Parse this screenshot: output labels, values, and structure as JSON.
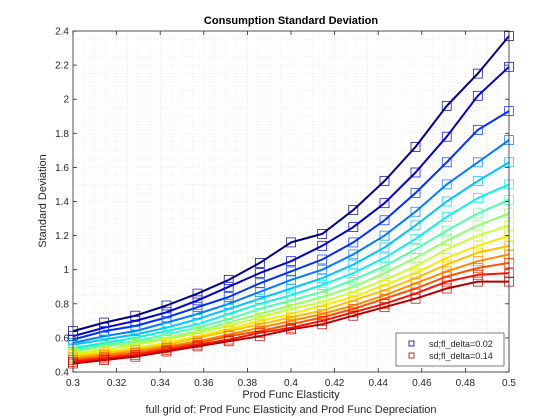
{
  "chart_data": {
    "type": "line",
    "title": "Consumption Standard Deviation",
    "xlabel": "Prod Func Elasticity",
    "ylabel": "Standard Deviation",
    "caption": "full grid of: Prod Func Elasticity and Prod Func Depreciation",
    "xlim": [
      0.3,
      0.5
    ],
    "ylim": [
      0.4,
      2.4
    ],
    "xticks": [
      "0.3",
      "0.32",
      "0.34",
      "0.36",
      "0.38",
      "0.4",
      "0.42",
      "0.44",
      "0.46",
      "0.48",
      "0.5"
    ],
    "yticks": [
      "0.4",
      "0.6",
      "0.8",
      "1",
      "1.2",
      "1.4",
      "1.6",
      "1.8",
      "2",
      "2.2",
      "2.4"
    ],
    "grid": "minor-dotted",
    "legend_position": "bottom-right",
    "legend": [
      {
        "label": "sd;fl_delta=0.02",
        "color": "#00008b"
      },
      {
        "label": "sd;fl_delta=0.14",
        "color": "#b30000"
      }
    ],
    "x": [
      0.3,
      0.3143,
      0.3286,
      0.3429,
      0.3571,
      0.3714,
      0.3857,
      0.4,
      0.4143,
      0.4286,
      0.4429,
      0.4571,
      0.4714,
      0.4857,
      0.5
    ],
    "series": [
      {
        "name": "sd;fl_delta=0.02",
        "color": "#00008b",
        "values": [
          0.64,
          0.69,
          0.73,
          0.79,
          0.86,
          0.94,
          1.04,
          1.16,
          1.21,
          1.35,
          1.52,
          1.72,
          1.96,
          2.15,
          2.37
        ]
      },
      {
        "color": "#0000d0",
        "values": [
          0.61,
          0.66,
          0.7,
          0.75,
          0.82,
          0.9,
          0.98,
          1.05,
          1.14,
          1.25,
          1.39,
          1.57,
          1.78,
          2.02,
          2.19
        ]
      },
      {
        "color": "#0030ff",
        "values": [
          0.59,
          0.64,
          0.67,
          0.72,
          0.78,
          0.84,
          0.92,
          0.99,
          1.06,
          1.16,
          1.29,
          1.45,
          1.63,
          1.82,
          1.93
        ]
      },
      {
        "color": "#007cff",
        "values": [
          0.57,
          0.61,
          0.64,
          0.69,
          0.74,
          0.8,
          0.87,
          0.94,
          1.0,
          1.09,
          1.2,
          1.34,
          1.5,
          1.63,
          1.76
        ]
      },
      {
        "color": "#00c4ff",
        "values": [
          0.56,
          0.59,
          0.62,
          0.66,
          0.71,
          0.77,
          0.83,
          0.89,
          0.95,
          1.03,
          1.13,
          1.26,
          1.4,
          1.52,
          1.63
        ]
      },
      {
        "color": "#10f0e8",
        "values": [
          0.54,
          0.57,
          0.6,
          0.64,
          0.68,
          0.74,
          0.8,
          0.85,
          0.91,
          0.98,
          1.07,
          1.18,
          1.31,
          1.42,
          1.5
        ]
      },
      {
        "color": "#50ffb0",
        "values": [
          0.53,
          0.56,
          0.58,
          0.62,
          0.66,
          0.71,
          0.77,
          0.82,
          0.87,
          0.94,
          1.02,
          1.12,
          1.23,
          1.33,
          1.41
        ]
      },
      {
        "color": "#90ff70",
        "values": [
          0.52,
          0.55,
          0.57,
          0.6,
          0.64,
          0.69,
          0.74,
          0.79,
          0.84,
          0.9,
          0.98,
          1.07,
          1.17,
          1.26,
          1.33
        ]
      },
      {
        "color": "#c8ff38",
        "values": [
          0.51,
          0.53,
          0.56,
          0.59,
          0.63,
          0.67,
          0.72,
          0.77,
          0.81,
          0.87,
          0.94,
          1.02,
          1.12,
          1.2,
          1.26
        ]
      },
      {
        "color": "#f0f000",
        "values": [
          0.5,
          0.52,
          0.54,
          0.57,
          0.61,
          0.65,
          0.7,
          0.74,
          0.79,
          0.84,
          0.91,
          0.98,
          1.07,
          1.14,
          1.2
        ]
      },
      {
        "color": "#ffc000",
        "values": [
          0.49,
          0.51,
          0.53,
          0.56,
          0.6,
          0.64,
          0.68,
          0.72,
          0.76,
          0.82,
          0.88,
          0.95,
          1.03,
          1.1,
          1.14
        ]
      },
      {
        "color": "#ff8c00",
        "values": [
          0.48,
          0.5,
          0.52,
          0.55,
          0.58,
          0.62,
          0.66,
          0.7,
          0.74,
          0.79,
          0.85,
          0.92,
          0.99,
          1.05,
          1.09
        ]
      },
      {
        "color": "#ff5000",
        "values": [
          0.47,
          0.49,
          0.51,
          0.54,
          0.57,
          0.61,
          0.64,
          0.68,
          0.72,
          0.77,
          0.83,
          0.89,
          0.96,
          1.01,
          1.04
        ]
      },
      {
        "color": "#ff1000",
        "values": [
          0.46,
          0.48,
          0.5,
          0.53,
          0.56,
          0.59,
          0.63,
          0.66,
          0.7,
          0.75,
          0.8,
          0.86,
          0.93,
          0.97,
          0.98
        ]
      },
      {
        "name": "sd;fl_delta=0.14",
        "color": "#b30000",
        "values": [
          0.45,
          0.47,
          0.49,
          0.52,
          0.55,
          0.58,
          0.61,
          0.65,
          0.68,
          0.73,
          0.78,
          0.83,
          0.89,
          0.93,
          0.93
        ]
      }
    ]
  }
}
